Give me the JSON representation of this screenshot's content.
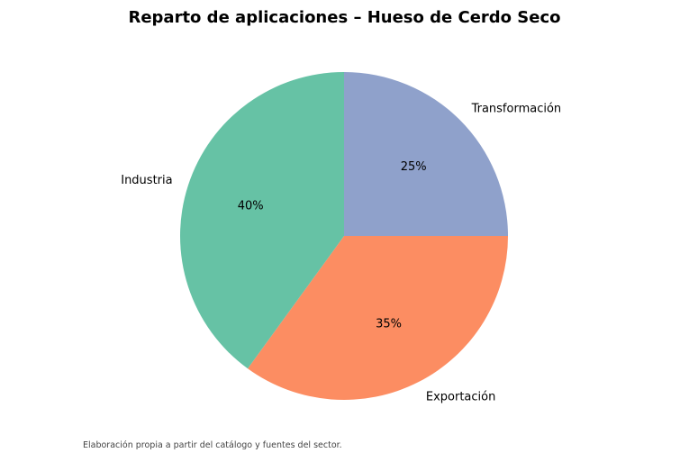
{
  "chart_data": {
    "type": "pie",
    "title": "Reparto de aplicaciones – Hueso de Cerdo Seco",
    "slices": [
      {
        "label": "Transformación",
        "value": 25,
        "pct_label": "25%",
        "color": "#8fa1cb"
      },
      {
        "label": "Exportación",
        "value": 35,
        "pct_label": "35%",
        "color": "#fc8d62"
      },
      {
        "label": "Industria",
        "value": 40,
        "pct_label": "40%",
        "color": "#66c2a5"
      }
    ],
    "start_angle_deg": 90,
    "direction": "clockwise"
  },
  "footnote": "Elaboración propia a partir del catálogo y fuentes del sector."
}
